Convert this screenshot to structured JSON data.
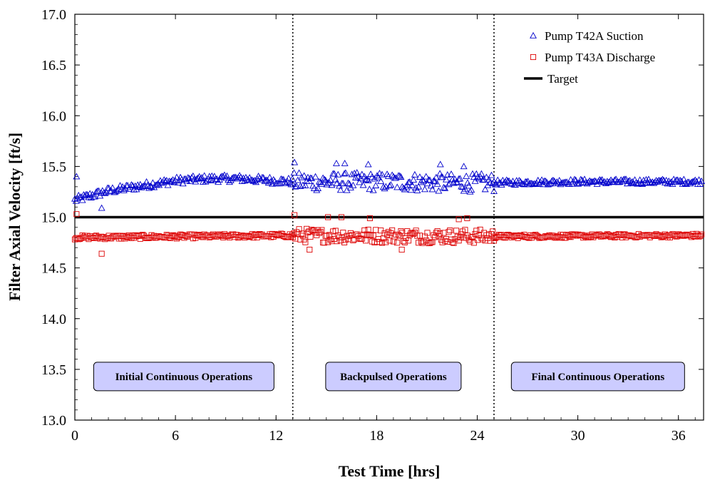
{
  "chart_data": {
    "type": "scatter",
    "title": "",
    "xlabel": "Test Time [hrs]",
    "ylabel": "Filter Axial Velocity [ft/s]",
    "xlim": [
      0,
      37.5
    ],
    "ylim": [
      13.0,
      17.0
    ],
    "xticks": [
      0,
      6,
      12,
      18,
      24,
      30,
      36
    ],
    "yticks": [
      13.0,
      13.5,
      14.0,
      14.5,
      15.0,
      15.5,
      16.0,
      16.5,
      17.0
    ],
    "grid": false,
    "legend_position": "top-right",
    "series": [
      {
        "name": "Pump T42A Suction",
        "marker": "triangle",
        "color": "#0000CC",
        "segments": [
          {
            "x_start": 0.0,
            "x_end": 13.0,
            "mean": [
              [
                0,
                15.17
              ],
              [
                2,
                15.26
              ],
              [
                4,
                15.31
              ],
              [
                6,
                15.36
              ],
              [
                8,
                15.38
              ],
              [
                10,
                15.38
              ],
              [
                12,
                15.36
              ],
              [
                13,
                15.35
              ]
            ],
            "spread": 0.035
          },
          {
            "x_start": 13.0,
            "x_end": 25.0,
            "mean": [
              [
                13,
                15.35
              ],
              [
                16,
                15.35
              ],
              [
                19,
                15.35
              ],
              [
                22,
                15.34
              ],
              [
                25,
                15.34
              ]
            ],
            "spread": 0.09
          },
          {
            "x_start": 25.0,
            "x_end": 37.4,
            "mean": [
              [
                25,
                15.34
              ],
              [
                30,
                15.35
              ],
              [
                37.4,
                15.35
              ]
            ],
            "spread": 0.025
          }
        ],
        "outliers": [
          [
            0.1,
            15.4
          ],
          [
            1.6,
            15.09
          ],
          [
            13.1,
            15.54
          ],
          [
            15.6,
            15.53
          ],
          [
            16.1,
            15.53
          ],
          [
            17.5,
            15.52
          ],
          [
            21.8,
            15.52
          ],
          [
            23.2,
            15.5
          ]
        ]
      },
      {
        "name": "Pump T43A Discharge",
        "marker": "square",
        "color": "#DD0000",
        "segments": [
          {
            "x_start": 0.0,
            "x_end": 13.0,
            "mean": [
              [
                0,
                14.8
              ],
              [
                13,
                14.82
              ]
            ],
            "spread": 0.02
          },
          {
            "x_start": 13.0,
            "x_end": 25.0,
            "mean": [
              [
                13,
                14.82
              ],
              [
                25,
                14.81
              ]
            ],
            "spread": 0.07
          },
          {
            "x_start": 25.0,
            "x_end": 37.4,
            "mean": [
              [
                25,
                14.81
              ],
              [
                37.4,
                14.82
              ]
            ],
            "spread": 0.018
          }
        ],
        "outliers": [
          [
            0.1,
            15.03
          ],
          [
            1.6,
            14.64
          ],
          [
            13.1,
            15.02
          ],
          [
            15.1,
            15.0
          ],
          [
            15.9,
            15.0
          ],
          [
            17.6,
            14.99
          ],
          [
            22.9,
            14.98
          ],
          [
            23.4,
            14.99
          ],
          [
            14.0,
            14.68
          ],
          [
            19.5,
            14.68
          ]
        ]
      },
      {
        "name": "Target",
        "type": "line",
        "color": "#000000",
        "y": 15.0
      }
    ],
    "phase_dividers": [
      13.0,
      25.0
    ],
    "annotations": [
      {
        "text": "Initial Continuous Operations",
        "x": 6.5,
        "y": 13.43
      },
      {
        "text": "Backpulsed Operations",
        "x": 19.0,
        "y": 13.43
      },
      {
        "text": "Final Continuous Operations",
        "x": 31.2,
        "y": 13.43
      }
    ],
    "annotation_fill": "#CCCCFF"
  }
}
